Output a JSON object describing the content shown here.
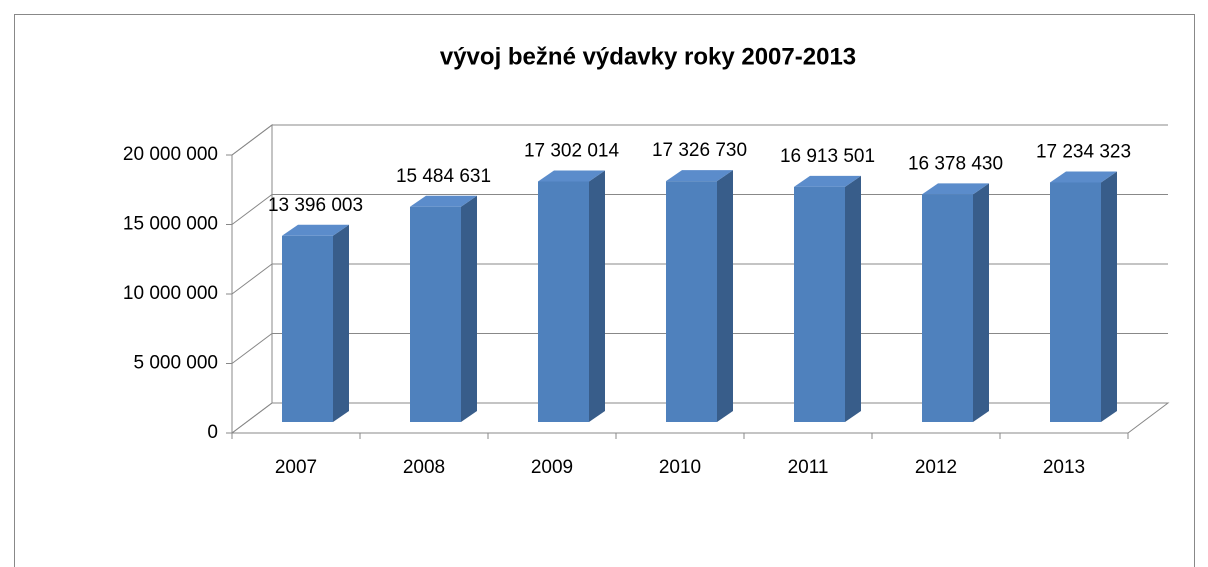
{
  "chart_data": {
    "type": "bar3d",
    "title": "vývoj bežné výdavky roky 2007-2013",
    "categories": [
      "2007",
      "2008",
      "2009",
      "2010",
      "2011",
      "2012",
      "2013"
    ],
    "values": [
      13396003,
      15484631,
      17302014,
      17326730,
      16913501,
      16378430,
      17234323
    ],
    "value_labels": [
      "13 396 003",
      "15 484 631",
      "17 302 014",
      "17 326 730",
      "16 913 501",
      "16 378 430",
      "17 234 323"
    ],
    "color": "#4f81bd",
    "ylim": [
      0,
      20000000
    ],
    "yticks": [
      0,
      {
        "value": 5000000,
        "label": "5 000 000"
      },
      {
        "value": 10000000,
        "label": "10 000 000"
      },
      {
        "value": 15000000,
        "label": "15 000 000"
      },
      {
        "value": 20000000,
        "label": "20 000 000"
      }
    ],
    "grid": true
  }
}
